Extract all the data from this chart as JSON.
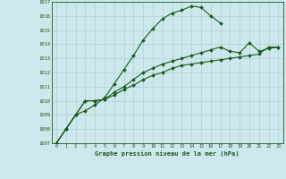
{
  "title": "Graphe pression niveau de la mer (hPa)",
  "bg_color": "#cce8ec",
  "grid_color": "#b8d8dc",
  "line_color": "#1a5c1a",
  "ylim": [
    1007,
    1017
  ],
  "yticks": [
    1007,
    1008,
    1009,
    1010,
    1011,
    1012,
    1013,
    1014,
    1015,
    1016,
    1017
  ],
  "x_labels": [
    "0",
    "1",
    "2",
    "3",
    "4",
    "5",
    "6",
    "7",
    "8",
    "9",
    "10",
    "11",
    "12",
    "13",
    "14",
    "15",
    "16",
    "17",
    "18",
    "19",
    "20",
    "21",
    "22",
    "23"
  ],
  "line1_x": [
    0,
    1,
    2,
    3,
    4,
    5,
    6,
    7,
    8,
    9,
    10,
    11,
    12,
    13,
    14,
    15,
    16,
    17
  ],
  "line1_y": [
    1007.0,
    1008.0,
    1009.0,
    1009.3,
    1009.7,
    1010.2,
    1011.2,
    1012.2,
    1013.2,
    1014.3,
    1015.1,
    1015.8,
    1016.2,
    1016.4,
    1016.7,
    1016.6,
    1016.0,
    1015.5
  ],
  "line2_x": [
    0,
    1,
    2,
    3,
    4,
    5,
    6,
    7,
    8,
    9,
    10,
    11,
    12,
    13,
    14,
    15,
    16,
    17,
    18,
    19,
    20,
    21,
    22,
    23
  ],
  "line2_y": [
    1007.0,
    1008.0,
    1009.0,
    1010.0,
    1010.0,
    1010.1,
    1010.4,
    1010.8,
    1011.1,
    1011.5,
    1011.8,
    1012.0,
    1012.3,
    1012.5,
    1012.6,
    1012.7,
    1012.8,
    1012.9,
    1013.0,
    1013.1,
    1013.2,
    1013.3,
    1013.8,
    1013.8
  ],
  "line3_x": [
    0,
    1,
    2,
    3,
    4,
    5,
    6,
    7,
    8,
    9,
    10,
    11,
    12,
    13,
    14,
    15,
    16,
    17,
    18,
    19,
    20,
    21,
    22,
    23
  ],
  "line3_y": [
    1007.0,
    1008.0,
    1009.0,
    1010.0,
    1010.0,
    1010.1,
    1010.6,
    1011.0,
    1011.5,
    1012.0,
    1012.3,
    1012.6,
    1012.8,
    1013.0,
    1013.2,
    1013.4,
    1013.6,
    1013.8,
    1013.5,
    1013.4,
    1014.1,
    1013.5,
    1013.7,
    1013.8
  ]
}
